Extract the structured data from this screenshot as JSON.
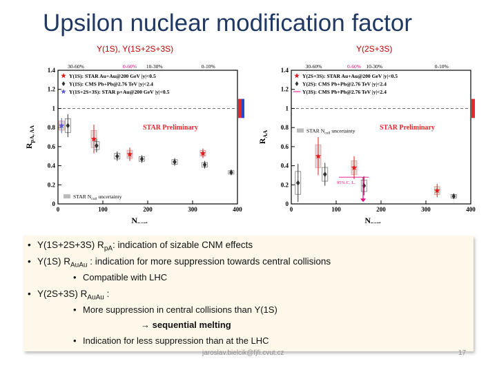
{
  "slide": {
    "title": "Upsilon nuclear modification factor",
    "subtitle_left": "Υ(1S), Υ(1S+2S+3S)",
    "subtitle_right": "Υ(2S+3S)",
    "footer": "jaroslav.bielcik@fjfi.cvut.cz",
    "page_number": "17"
  },
  "summary": {
    "bullet1_prefix": "Υ(1S+2S+3S) R",
    "bullet1_sub": "pA",
    "bullet1_suffix": ": indication of sizable CNM effects",
    "bullet2_prefix": "Υ(1S) R",
    "bullet2_sub": "AuAu",
    "bullet2_suffix": " : indication for more suppression towards central collisions",
    "bullet2_sub1": "Compatible with LHC",
    "bullet3_prefix": "Υ(2S+3S) R",
    "bullet3_sub": "AuAu",
    "bullet3_suffix": " :",
    "bullet3_sub1": "More suppression in central collisions than Υ(1S)",
    "bullet3_sub1b": "→ sequential melting",
    "bullet3_sub2": "Indication for less suppression than at the LHC"
  },
  "colors": {
    "star": "#e41a1c",
    "cms": "#333333",
    "pa": "#5a5ad8",
    "band_red": "#e8262e",
    "band_blue": "#2448c8",
    "accent": "#e5007d"
  },
  "chart_data": [
    {
      "type": "scatter",
      "ylabel": "R",
      "ylabel_sub": "pA, AA",
      "xlabel": "N",
      "xlabel_sub": "part",
      "xlim": [
        0,
        400
      ],
      "ylim": [
        0,
        1.4
      ],
      "x_ticks": [
        "0",
        "100",
        "200",
        "300",
        "400"
      ],
      "y_ticks": [
        "0",
        "0.2",
        "0.4",
        "0.6",
        "0.8",
        "1",
        "1.2",
        "1.4"
      ],
      "centrality_labels": [
        "30-60%",
        "0-60%",
        "10-30%",
        "0-10%"
      ],
      "centrality_label_x": [
        40,
        160,
        215,
        335
      ],
      "legend": [
        "Υ(1S): STAR Au+Au@200 GeV |y|<0.5",
        "Υ(1S): CMS Pb+Pb@2.76 TeV |y|<2.4",
        "Υ(1S+2S+3S): STAR p+Au@200 GeV |y|<0.5"
      ],
      "annotation": "STAR Preliminary",
      "unc_label": "STAR N",
      "unc_label_sub": "coll",
      "unc_label_suffix": " uncertainty",
      "series": [
        {
          "name": "Υ(1S): STAR Au+Au@200 GeV |y|<0.5",
          "marker": "star",
          "x": [
            80,
            160,
            323
          ],
          "y": [
            0.68,
            0.52,
            0.53
          ],
          "err": [
            0.15,
            0.07,
            0.05
          ]
        },
        {
          "name": "Υ(1S): CMS Pb+Pb@2.76 TeV |y|<2.4",
          "marker": "diamond",
          "x": [
            22,
            86,
            132,
            187,
            260,
            327,
            386
          ],
          "y": [
            0.82,
            0.61,
            0.5,
            0.47,
            0.44,
            0.41,
            0.33
          ],
          "err": [
            0.12,
            0.07,
            0.05,
            0.04,
            0.04,
            0.04,
            0.03
          ]
        },
        {
          "name": "Υ(1S+2S+3S): STAR p+Au@200 GeV |y|<0.5",
          "marker": "star",
          "x": [
            8
          ],
          "y": [
            0.82
          ],
          "err": [
            0.08
          ]
        }
      ]
    },
    {
      "type": "scatter",
      "ylabel": "R",
      "ylabel_sub": "AA",
      "xlabel": "N",
      "xlabel_sub": "part",
      "xlim": [
        0,
        400
      ],
      "ylim": [
        0,
        1.4
      ],
      "x_ticks": [
        "0",
        "100",
        "200",
        "300",
        "400"
      ],
      "y_ticks": [
        "0",
        "0.2",
        "0.4",
        "0.6",
        "0.8",
        "1",
        "1.2",
        "1.4"
      ],
      "centrality_labels": [
        "30-60%",
        "0-60%",
        "10-30%",
        "0-10%"
      ],
      "centrality_label_x": [
        50,
        140,
        185,
        335
      ],
      "legend": [
        "Υ(2S+3S): STAR Au+Au@200 GeV |y|<0.5",
        "Υ(2S): CMS Pb+Pb@2.76 TeV |y|<2.4",
        "Υ(3S): CMS Pb+Pb@2.76 TeV |y|<2.4"
      ],
      "annotation": "STAR Preliminary",
      "unc_label": "STAR N",
      "unc_label_sub": "coll",
      "unc_label_suffix": " uncertainty",
      "limit_label": "95% C. L.",
      "series": [
        {
          "name": "Υ(2S+3S): STAR Au+Au@200 GeV |y|<0.5",
          "marker": "star",
          "x": [
            60,
            140,
            325
          ],
          "y": [
            0.5,
            0.38,
            0.14
          ],
          "err": [
            0.2,
            0.12,
            0.07
          ]
        },
        {
          "name": "Υ(2S): CMS Pb+Pb@2.76 TeV |y|<2.4",
          "marker": "diamond",
          "x": [
            15,
            75,
            162,
            362
          ],
          "y": [
            0.22,
            0.31,
            0.19,
            0.08
          ],
          "err": [
            0.2,
            0.12,
            0.1,
            0.03
          ]
        }
      ],
      "upper_limit": {
        "x": 160,
        "y": 0.02
      }
    }
  ]
}
